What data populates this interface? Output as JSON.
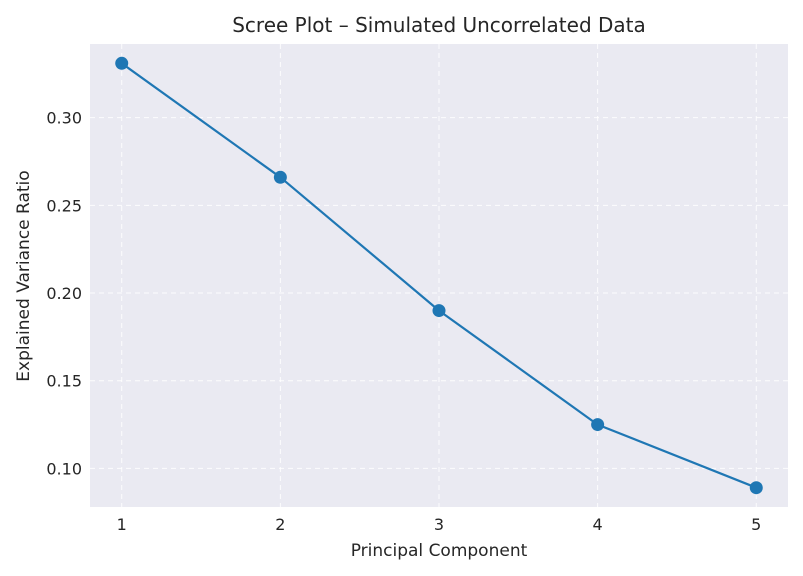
{
  "chart_data": {
    "type": "line",
    "title": "Scree Plot – Simulated Uncorrelated Data",
    "xlabel": "Principal Component",
    "ylabel": "Explained Variance Ratio",
    "x": [
      1,
      2,
      3,
      4,
      5
    ],
    "x_tick_labels": [
      "1",
      "2",
      "3",
      "4",
      "5"
    ],
    "xlim": [
      0.8,
      5.2
    ],
    "y_ticks": [
      0.1,
      0.15,
      0.2,
      0.25,
      0.3
    ],
    "y_tick_labels": [
      "0.10",
      "0.15",
      "0.20",
      "0.25",
      "0.30"
    ],
    "ylim": [
      0.078,
      0.342
    ],
    "series": [
      {
        "values": [
          0.331,
          0.266,
          0.19,
          0.125,
          0.089
        ],
        "color": "#1f77b4",
        "marker": "circle"
      }
    ],
    "grid": true,
    "grid_style": "dashed",
    "plot_background": "#eaeaf2",
    "legend": "none"
  }
}
